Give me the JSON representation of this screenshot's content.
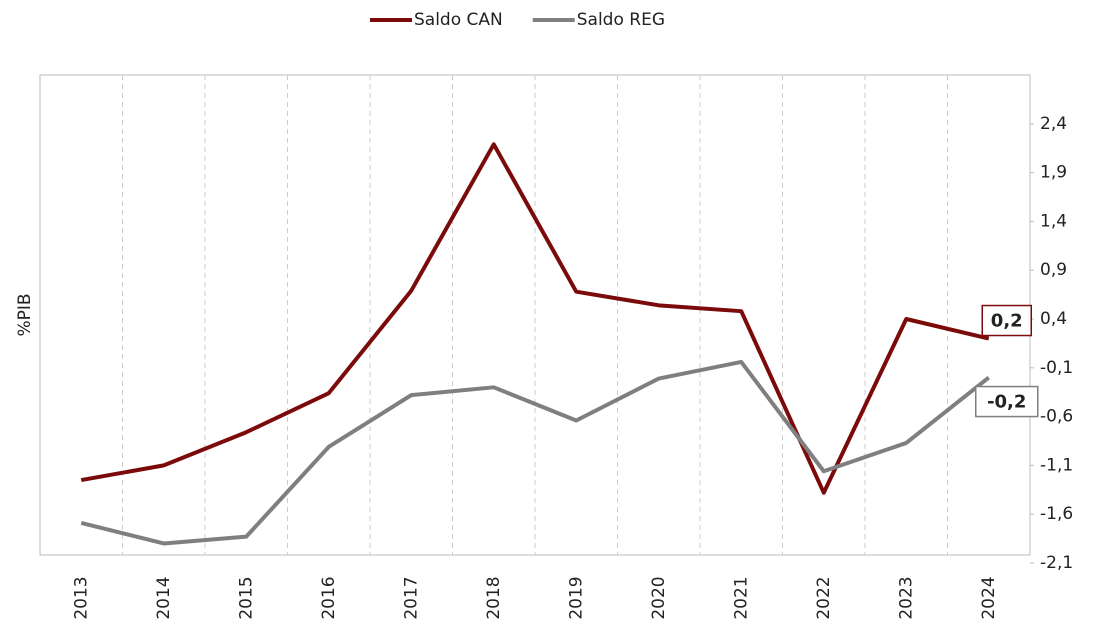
{
  "chart_data": {
    "type": "line",
    "categories": [
      "2013",
      "2014",
      "2015",
      "2016",
      "2017",
      "2018",
      "2019",
      "2020",
      "2021",
      "2022",
      "2023",
      "2024"
    ],
    "series": [
      {
        "name": "Saldo CAN",
        "color": "#7b0a0a",
        "values": [
          -1.25,
          -1.1,
          -0.76,
          -0.36,
          0.69,
          2.19,
          0.68,
          0.54,
          0.48,
          -1.38,
          0.4,
          0.2
        ],
        "value_labels": [
          null,
          null,
          null,
          null,
          null,
          null,
          null,
          null,
          null,
          null,
          null,
          "0,2"
        ]
      },
      {
        "name": "Saldo REG",
        "color": "#7f7f7f",
        "values": [
          -1.69,
          -1.9,
          -1.83,
          -0.91,
          -0.38,
          -0.3,
          -0.64,
          -0.21,
          -0.04,
          -1.16,
          -0.87,
          -0.2
        ],
        "value_labels": [
          null,
          null,
          null,
          null,
          null,
          null,
          null,
          null,
          null,
          null,
          null,
          "-0,2"
        ]
      }
    ],
    "y_label": "%PIB",
    "ylim": [
      -2.1,
      2.9
    ],
    "yticks": [
      {
        "value": -2.1,
        "label": "-2,1"
      },
      {
        "value": -1.6,
        "label": "-1,6"
      },
      {
        "value": -1.1,
        "label": "-1,1"
      },
      {
        "value": -0.6,
        "label": "-0,6"
      },
      {
        "value": -0.1,
        "label": "-0,1"
      },
      {
        "value": 0.4,
        "label": "0,4"
      },
      {
        "value": 0.9,
        "label": "0,9"
      },
      {
        "value": 1.4,
        "label": "1,4"
      },
      {
        "value": 1.9,
        "label": "1,9"
      },
      {
        "value": 2.4,
        "label": "2,4"
      }
    ],
    "legend": "top"
  }
}
